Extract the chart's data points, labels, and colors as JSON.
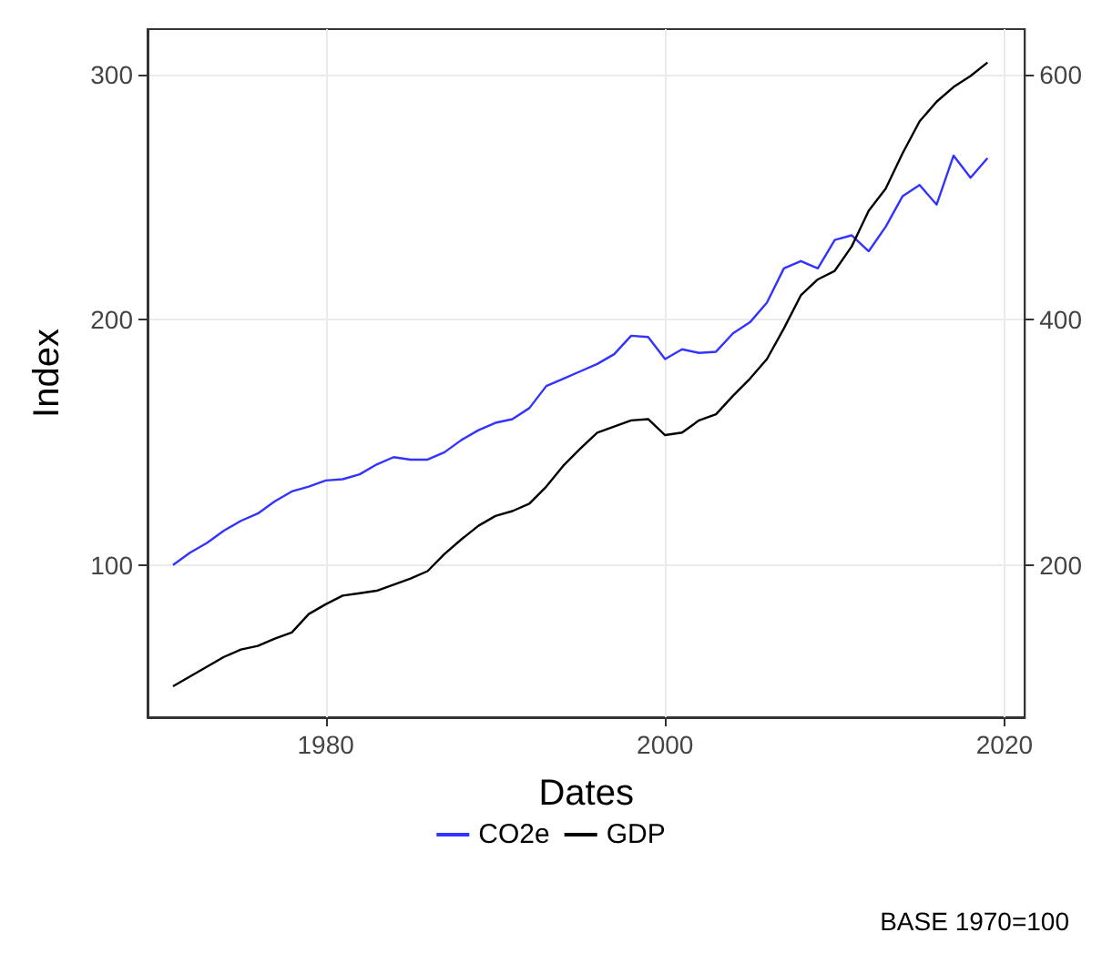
{
  "chart_data": {
    "type": "line",
    "xlabel": "Dates",
    "ylabel": "Index",
    "annotations": [
      "BASE 1970=100"
    ],
    "x": [
      1971,
      1972,
      1973,
      1974,
      1975,
      1976,
      1977,
      1978,
      1979,
      1980,
      1981,
      1982,
      1983,
      1984,
      1985,
      1986,
      1987,
      1988,
      1989,
      1990,
      1991,
      1992,
      1993,
      1994,
      1995,
      1996,
      1997,
      1998,
      1999,
      2000,
      2001,
      2002,
      2003,
      2004,
      2005,
      2006,
      2007,
      2008,
      2009,
      2010,
      2011,
      2012,
      2013,
      2014,
      2015,
      2016,
      2017,
      2018,
      2019
    ],
    "series": [
      {
        "name": "CO2e",
        "color": "#3333ff",
        "values": [
          100,
          105,
          109,
          114,
          118,
          121,
          126,
          130,
          132,
          134.5,
          135,
          137,
          141,
          144,
          143,
          143,
          146,
          151,
          155,
          158,
          159.5,
          164,
          173,
          176,
          179,
          182,
          186,
          193.5,
          193,
          184,
          188,
          186.5,
          187,
          194.5,
          199,
          207,
          221,
          224,
          221,
          232.6,
          234.5,
          228,
          238,
          250.5,
          255,
          247,
          267,
          258,
          266
        ]
      },
      {
        "name": "GDP",
        "color": "#000000",
        "axis": "y2",
        "values": [
          101,
          109,
          117,
          125,
          131,
          134,
          140,
          145,
          160,
          168,
          175,
          177,
          179,
          184,
          189,
          195,
          209,
          221,
          232,
          240,
          244,
          250,
          264,
          281,
          295,
          308,
          313,
          318,
          319,
          306,
          308,
          318,
          323,
          338,
          352,
          368,
          393,
          420,
          433,
          440,
          460,
          489,
          507,
          536,
          562,
          578,
          590,
          599,
          610
        ]
      }
    ],
    "xlim": [
      1969.5,
      2021.2
    ],
    "xticks": [
      1980,
      2000,
      2020
    ],
    "ylim": [
      37.9,
      318.6
    ],
    "yticks": [
      100,
      200,
      300
    ],
    "y2lim": [
      75.8,
      637.2
    ],
    "y2ticks": [
      200,
      400,
      600
    ],
    "grid": true,
    "legend": "bottom",
    "line_style": "solid",
    "marker": "none"
  }
}
